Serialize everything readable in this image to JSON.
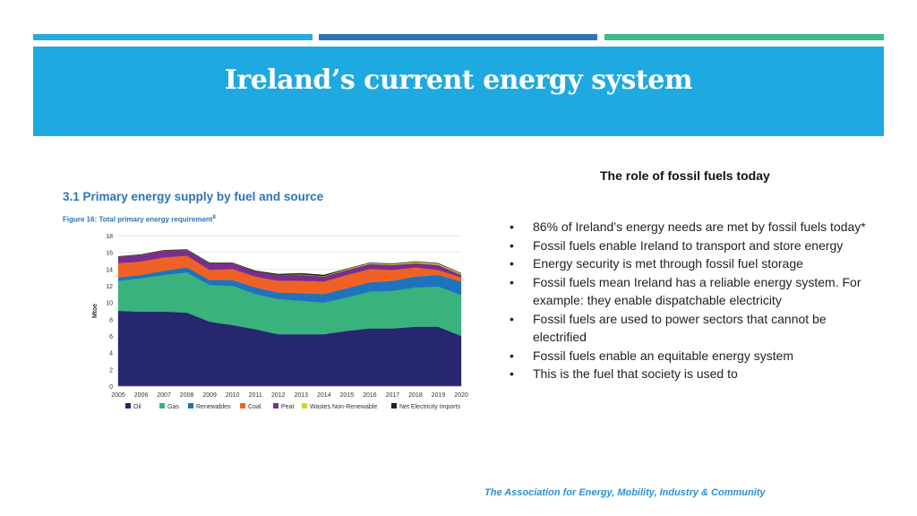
{
  "slide": {
    "title": "Ireland’s current energy system",
    "accent_colors": [
      "#29abe2",
      "#2e74b5",
      "#3cb98b"
    ],
    "banner_color": "#1fa9e1"
  },
  "figure": {
    "section_title": "3.1  Primary energy supply by fuel and source",
    "caption": "Figure 16:  Total primary energy requirement",
    "caption_superscript": "8"
  },
  "chart_data": {
    "type": "area",
    "stacked": true,
    "title": "",
    "xlabel": "",
    "ylabel": "Mtoe",
    "ylim": [
      0,
      18
    ],
    "yticks": [
      0,
      2,
      4,
      6,
      8,
      10,
      12,
      14,
      16,
      18
    ],
    "x": [
      2005,
      2006,
      2007,
      2008,
      2009,
      2010,
      2011,
      2012,
      2013,
      2014,
      2015,
      2016,
      2017,
      2018,
      2019,
      2020
    ],
    "grid": true,
    "legend_position": "bottom",
    "series": [
      {
        "name": "Oil",
        "color": "#26276e",
        "values": [
          9.0,
          8.9,
          8.9,
          8.8,
          7.7,
          7.3,
          6.8,
          6.2,
          6.2,
          6.2,
          6.6,
          6.9,
          6.9,
          7.1,
          7.1,
          6.0
        ]
      },
      {
        "name": "Gas",
        "color": "#3ab27e",
        "values": [
          3.6,
          4.0,
          4.4,
          4.8,
          4.4,
          4.7,
          4.2,
          4.2,
          4.0,
          3.8,
          4.0,
          4.4,
          4.5,
          4.7,
          4.8,
          4.9
        ]
      },
      {
        "name": "Renewables",
        "color": "#1e73be",
        "values": [
          0.4,
          0.4,
          0.5,
          0.6,
          0.6,
          0.7,
          0.8,
          0.8,
          0.9,
          1.0,
          1.1,
          1.1,
          1.2,
          1.3,
          1.4,
          1.6
        ]
      },
      {
        "name": "Coal",
        "color": "#ee6325",
        "values": [
          1.7,
          1.6,
          1.6,
          1.4,
          1.2,
          1.3,
          1.3,
          1.4,
          1.5,
          1.5,
          1.6,
          1.6,
          1.3,
          1.1,
          0.6,
          0.5
        ]
      },
      {
        "name": "Peat",
        "color": "#7b2d8e",
        "values": [
          0.8,
          0.8,
          0.8,
          0.7,
          0.8,
          0.7,
          0.6,
          0.7,
          0.7,
          0.6,
          0.6,
          0.6,
          0.6,
          0.5,
          0.6,
          0.3
        ]
      },
      {
        "name": "Wastes Non-Renewable",
        "color": "#d4d22a",
        "values": [
          0.0,
          0.0,
          0.0,
          0.0,
          0.0,
          0.0,
          0.0,
          0.0,
          0.05,
          0.05,
          0.1,
          0.1,
          0.1,
          0.15,
          0.15,
          0.15
        ]
      },
      {
        "name": "Net Electricity Imports",
        "color": "#222222",
        "values": [
          0.0,
          0.05,
          0.05,
          0.05,
          0.05,
          0.05,
          0.1,
          0.1,
          0.15,
          0.15,
          0.05,
          0.05,
          0.05,
          0.05,
          0.05,
          0.05
        ]
      }
    ]
  },
  "content": {
    "heading": "The role of fossil fuels today",
    "bullet_char": "•",
    "bullets": [
      "86% of Ireland’s energy needs are met by fossil fuels today*",
      "Fossil fuels enable Ireland to transport and store energy",
      "Energy security is met through fossil fuel storage",
      "Fossil fuels mean Ireland has a reliable energy system. For example: they enable dispatchable electricity",
      "Fossil fuels are used to power sectors that cannot be electrified",
      "Fossil fuels enable an equitable energy system",
      "This is the fuel that society is used to"
    ]
  },
  "footer": {
    "text": "The Association for Energy, Mobility, Industry & Community"
  }
}
